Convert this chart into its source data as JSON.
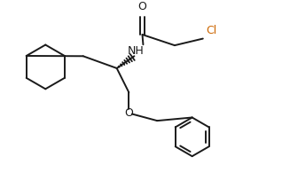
{
  "background_color": "#ffffff",
  "line_color": "#1a1a1a",
  "label_color_Cl": "#cc6600",
  "line_width": 1.4,
  "figsize": [
    3.18,
    2.12
  ],
  "dpi": 100,
  "xlim": [
    0,
    10
  ],
  "ylim": [
    0,
    6.67
  ]
}
